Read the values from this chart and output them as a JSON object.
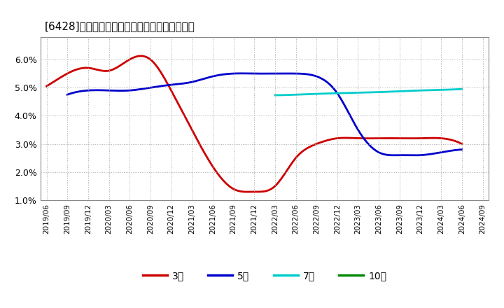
{
  "title": "[6428]　当期純利益マージンの標準偏差の推移",
  "title_fontsize": 11,
  "background_color": "#ffffff",
  "plot_bg_color": "#ffffff",
  "grid_color": "#aaaaaa",
  "ylim": [
    0.01,
    0.068
  ],
  "yticks": [
    0.01,
    0.02,
    0.03,
    0.04,
    0.05,
    0.06
  ],
  "ytick_labels": [
    "1.0%",
    "2.0%",
    "3.0%",
    "4.0%",
    "5.0%",
    "6.0%"
  ],
  "series": {
    "3年": {
      "color": "#cc0000",
      "values": [
        0.0505,
        0.055,
        0.057,
        0.056,
        0.06,
        0.06,
        0.049,
        0.035,
        0.022,
        0.014,
        0.013,
        0.015,
        0.025,
        0.03,
        0.032,
        0.032,
        0.032,
        0.032,
        0.032,
        0.032,
        0.03,
        null
      ]
    },
    "5年": {
      "color": "#0000cc",
      "values": [
        null,
        0.0475,
        0.049,
        0.049,
        0.049,
        0.05,
        0.051,
        0.052,
        0.054,
        0.055,
        0.055,
        0.055,
        0.055,
        0.054,
        0.048,
        0.035,
        0.027,
        0.026,
        0.026,
        0.027,
        0.028,
        null
      ]
    },
    "7年": {
      "color": "#00cccc",
      "values": [
        null,
        null,
        null,
        null,
        null,
        null,
        null,
        null,
        null,
        null,
        null,
        0.0473,
        0.0475,
        0.0478,
        0.048,
        0.0482,
        0.0484,
        0.0487,
        0.049,
        0.0492,
        0.0495,
        null
      ]
    },
    "10年": {
      "color": "#008800",
      "values": [
        null,
        null,
        null,
        null,
        null,
        null,
        null,
        null,
        null,
        null,
        null,
        null,
        null,
        null,
        null,
        null,
        null,
        null,
        null,
        null,
        null,
        null
      ]
    }
  },
  "legend_labels": [
    "3年",
    "5年",
    "7年",
    "10年"
  ],
  "legend_colors": [
    "#cc0000",
    "#0000cc",
    "#00cccc",
    "#008800"
  ],
  "xticklabels": [
    "2019/06",
    "2019/09",
    "2019/12",
    "2020/03",
    "2020/06",
    "2020/09",
    "2020/12",
    "2021/03",
    "2021/06",
    "2021/09",
    "2021/12",
    "2022/03",
    "2022/06",
    "2022/09",
    "2022/12",
    "2023/03",
    "2023/06",
    "2023/09",
    "2023/12",
    "2024/03",
    "2024/06",
    "2024/09"
  ]
}
